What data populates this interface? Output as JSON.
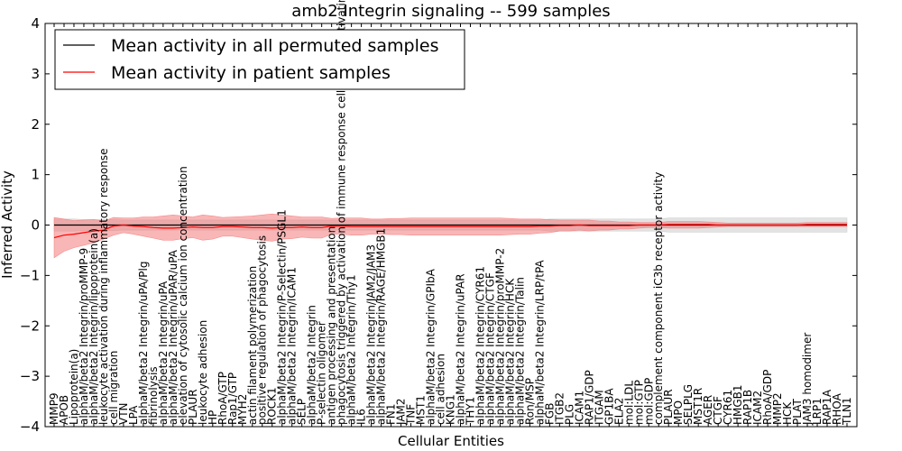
{
  "chart_data": {
    "type": "line",
    "title": "amb2 Integrin signaling -- 599 samples",
    "xlabel": "Cellular Entities",
    "ylabel": "Inferred Activity",
    "ylim": [
      -4,
      4
    ],
    "yticks": [
      -4,
      -3,
      -2,
      -1,
      0,
      1,
      2,
      3,
      4
    ],
    "grid": false,
    "legend_position": "top-left",
    "categories": [
      "MMP9",
      "APOB",
      "Lipoprotein(a)",
      "alphaM/beta2 Integrin/proMMP-9",
      "alphaM/beta2 Integrin/lipoprotein(a)",
      "leukocyte activation during inflammatory response",
      "cell migration",
      "VTN",
      "LPA",
      "alphaM/beta2 Integrin/uPA/Plg",
      "fibrinolysis",
      "alphaM/beta2 Integrin/uPA",
      "alphaM/beta2 Integrin/uPAR/uPA",
      "elevation of cytosolic calcium ion concentration",
      "PLAUR",
      "leukocyte adhesion",
      "HP",
      "RhoA/GTP",
      "Rap1/GTP",
      "MYH2",
      "actin filament polymerization",
      "positive regulation of phagocytosis",
      "ROCK1",
      "alphaM/beta2 Integrin/P-Selectin/PSGL1",
      "alphaM/beta2 Integrin/ICAM1",
      "SELP",
      "alphaM/beta2 Integrin",
      "P-selectin oligomer",
      "antigen processing and presentation",
      "phagocytosis triggered by activation of immune response cell surface activating receptor",
      "alphaM/beta2 Integrin/Thy1",
      "IL6",
      "alphaM/beta2 Integrin/JAM2/JAM3",
      "alphaM/beta2 Integrin/RAGE/HMGB1",
      "FN1",
      "JAM2",
      "TNF",
      "MST1",
      "alphaM/beta2 Integrin/GPIbA",
      "cell adhesion",
      "KNG1",
      "alphaM/beta2 Integrin/uPAR",
      "THY1",
      "alphaM/beta2 Integrin/CYR61",
      "alphaM/beta2 Integrin/CTGF",
      "alphaM/beta2 Integrin/proMMP-2",
      "alphaM/beta2 Integrin/HCK",
      "alphaM/beta2 Integrin/Talin",
      "Ron/MSP",
      "alphaM/beta2 Integrin/LRP/tPA",
      "FGB",
      "ITGB2",
      "PLG",
      "ICAM1",
      "RAP1/GDP",
      "ITGAM",
      "GP1BA",
      "ELA2",
      "mol:LDL",
      "mol:GTP",
      "mol:GDP",
      "complement component iC3b receptor activity",
      "PLAUR",
      "MPO",
      "SELPLG",
      "MST1R",
      "AGER",
      "CTGF",
      "CYR61",
      "HMGB1",
      "RAP1B",
      "ICAM2",
      "RhoA/GDP",
      "MMP2",
      "HCK",
      "PLAT",
      "JAM3 homodimer",
      "LRP1",
      "RAP1A",
      "RHOA",
      "TLN1"
    ],
    "series": [
      {
        "name": "Mean activity in all permuted samples",
        "color": "#000000",
        "values": [
          0,
          0,
          0,
          0,
          0,
          0,
          0,
          0,
          0,
          0,
          0,
          0,
          0,
          0,
          0,
          0,
          0,
          0,
          0,
          0,
          0,
          0,
          0,
          0,
          0,
          0,
          0,
          0,
          0,
          0,
          0,
          0,
          0,
          0,
          0,
          0,
          0,
          0,
          0,
          0,
          0,
          0,
          0,
          0,
          0,
          0,
          0,
          0,
          0,
          0,
          0,
          0,
          0,
          0,
          0,
          0,
          0,
          0,
          0,
          0,
          0,
          0,
          0,
          0,
          0,
          0,
          0,
          0,
          0,
          0,
          0,
          0,
          0,
          0,
          0,
          0,
          0,
          0,
          0,
          0,
          0
        ],
        "band_lower": [
          -0.12,
          -0.12,
          -0.12,
          -0.11,
          -0.11,
          -0.11,
          -0.11,
          -0.1,
          -0.1,
          -0.1,
          -0.1,
          -0.1,
          -0.1,
          -0.1,
          -0.1,
          -0.1,
          -0.1,
          -0.1,
          -0.1,
          -0.1,
          -0.1,
          -0.1,
          -0.1,
          -0.1,
          -0.1,
          -0.1,
          -0.1,
          -0.1,
          -0.1,
          -0.1,
          -0.1,
          -0.1,
          -0.1,
          -0.1,
          -0.1,
          -0.1,
          -0.1,
          -0.1,
          -0.1,
          -0.1,
          -0.1,
          -0.1,
          -0.1,
          -0.1,
          -0.1,
          -0.1,
          -0.1,
          -0.1,
          -0.1,
          -0.1,
          -0.12,
          -0.12,
          -0.12,
          -0.12,
          -0.12,
          -0.12,
          -0.12,
          -0.12,
          -0.12,
          -0.12,
          -0.12,
          -0.12,
          -0.14,
          -0.14,
          -0.14,
          -0.14,
          -0.14,
          -0.14,
          -0.14,
          -0.14,
          -0.14,
          -0.14,
          -0.14,
          -0.14,
          -0.14,
          -0.14,
          -0.14,
          -0.14,
          -0.14,
          -0.14,
          -0.14
        ],
        "band_upper": [
          0.12,
          0.12,
          0.12,
          0.11,
          0.11,
          0.11,
          0.11,
          0.1,
          0.1,
          0.1,
          0.1,
          0.1,
          0.1,
          0.1,
          0.1,
          0.1,
          0.1,
          0.1,
          0.1,
          0.1,
          0.1,
          0.1,
          0.1,
          0.1,
          0.1,
          0.1,
          0.1,
          0.1,
          0.1,
          0.1,
          0.1,
          0.1,
          0.1,
          0.1,
          0.1,
          0.1,
          0.1,
          0.1,
          0.1,
          0.1,
          0.1,
          0.1,
          0.1,
          0.1,
          0.1,
          0.1,
          0.1,
          0.1,
          0.1,
          0.1,
          0.12,
          0.12,
          0.12,
          0.12,
          0.12,
          0.12,
          0.12,
          0.12,
          0.12,
          0.12,
          0.12,
          0.12,
          0.14,
          0.14,
          0.14,
          0.14,
          0.14,
          0.14,
          0.14,
          0.14,
          0.14,
          0.14,
          0.14,
          0.14,
          0.14,
          0.14,
          0.14,
          0.14,
          0.14,
          0.14,
          0.14
        ]
      },
      {
        "name": "Mean activity in patient samples",
        "color": "#ff0000",
        "values": [
          -0.25,
          -0.2,
          -0.18,
          -0.15,
          -0.12,
          -0.1,
          -0.02,
          0,
          -0.02,
          -0.03,
          -0.05,
          -0.06,
          -0.06,
          -0.05,
          -0.04,
          -0.05,
          -0.05,
          -0.03,
          -0.03,
          -0.04,
          -0.05,
          -0.05,
          -0.06,
          -0.05,
          -0.05,
          -0.04,
          -0.05,
          -0.05,
          -0.02,
          -0.02,
          -0.03,
          -0.03,
          -0.03,
          -0.03,
          -0.03,
          -0.03,
          -0.03,
          -0.03,
          -0.03,
          -0.03,
          -0.03,
          -0.03,
          -0.03,
          -0.03,
          -0.03,
          -0.03,
          -0.03,
          -0.03,
          -0.03,
          -0.02,
          -0.02,
          -0.01,
          -0.01,
          0,
          -0.01,
          -0.01,
          -0.01,
          -0.01,
          -0.01,
          0,
          0,
          0,
          0.01,
          0.01,
          0.01,
          0.01,
          0.01,
          0,
          0,
          0,
          0,
          0,
          0,
          0,
          0,
          0,
          0.01,
          0.01,
          0.01,
          0.01,
          0.01
        ],
        "band_lower": [
          -0.65,
          -0.52,
          -0.45,
          -0.4,
          -0.35,
          -0.28,
          -0.2,
          -0.15,
          -0.18,
          -0.22,
          -0.26,
          -0.3,
          -0.3,
          -0.27,
          -0.25,
          -0.3,
          -0.28,
          -0.22,
          -0.22,
          -0.25,
          -0.28,
          -0.3,
          -0.32,
          -0.28,
          -0.27,
          -0.24,
          -0.26,
          -0.26,
          -0.18,
          -0.18,
          -0.2,
          -0.2,
          -0.18,
          -0.18,
          -0.19,
          -0.19,
          -0.2,
          -0.2,
          -0.2,
          -0.2,
          -0.2,
          -0.2,
          -0.2,
          -0.2,
          -0.2,
          -0.2,
          -0.19,
          -0.18,
          -0.18,
          -0.16,
          -0.15,
          -0.12,
          -0.12,
          -0.1,
          -0.12,
          -0.1,
          -0.1,
          -0.08,
          -0.08,
          -0.06,
          -0.05,
          -0.05,
          -0.06,
          -0.06,
          -0.06,
          -0.06,
          -0.05,
          -0.04,
          -0.03,
          -0.03,
          -0.03,
          -0.03,
          -0.03,
          -0.03,
          -0.03,
          -0.03,
          -0.03,
          -0.03,
          -0.03,
          -0.03,
          -0.03
        ],
        "band_upper": [
          0.15,
          0.12,
          0.09,
          0.1,
          0.11,
          0.08,
          0.15,
          0.14,
          0.14,
          0.16,
          0.16,
          0.18,
          0.2,
          0.18,
          0.16,
          0.2,
          0.18,
          0.15,
          0.16,
          0.17,
          0.18,
          0.2,
          0.22,
          0.2,
          0.18,
          0.16,
          0.16,
          0.16,
          0.13,
          0.14,
          0.14,
          0.14,
          0.12,
          0.12,
          0.13,
          0.13,
          0.14,
          0.14,
          0.14,
          0.14,
          0.14,
          0.14,
          0.14,
          0.14,
          0.14,
          0.14,
          0.13,
          0.12,
          0.12,
          0.12,
          0.11,
          0.1,
          0.1,
          0.1,
          0.1,
          0.08,
          0.08,
          0.06,
          0.06,
          0.05,
          0.05,
          0.05,
          0.07,
          0.07,
          0.07,
          0.07,
          0.06,
          0.05,
          0.04,
          0.04,
          0.04,
          0.04,
          0.04,
          0.04,
          0.04,
          0.04,
          0.05,
          0.05,
          0.05,
          0.05,
          0.05
        ]
      }
    ],
    "band_colors": {
      "permuted": "#c8c8c8",
      "patient": "#f47a7a"
    }
  }
}
